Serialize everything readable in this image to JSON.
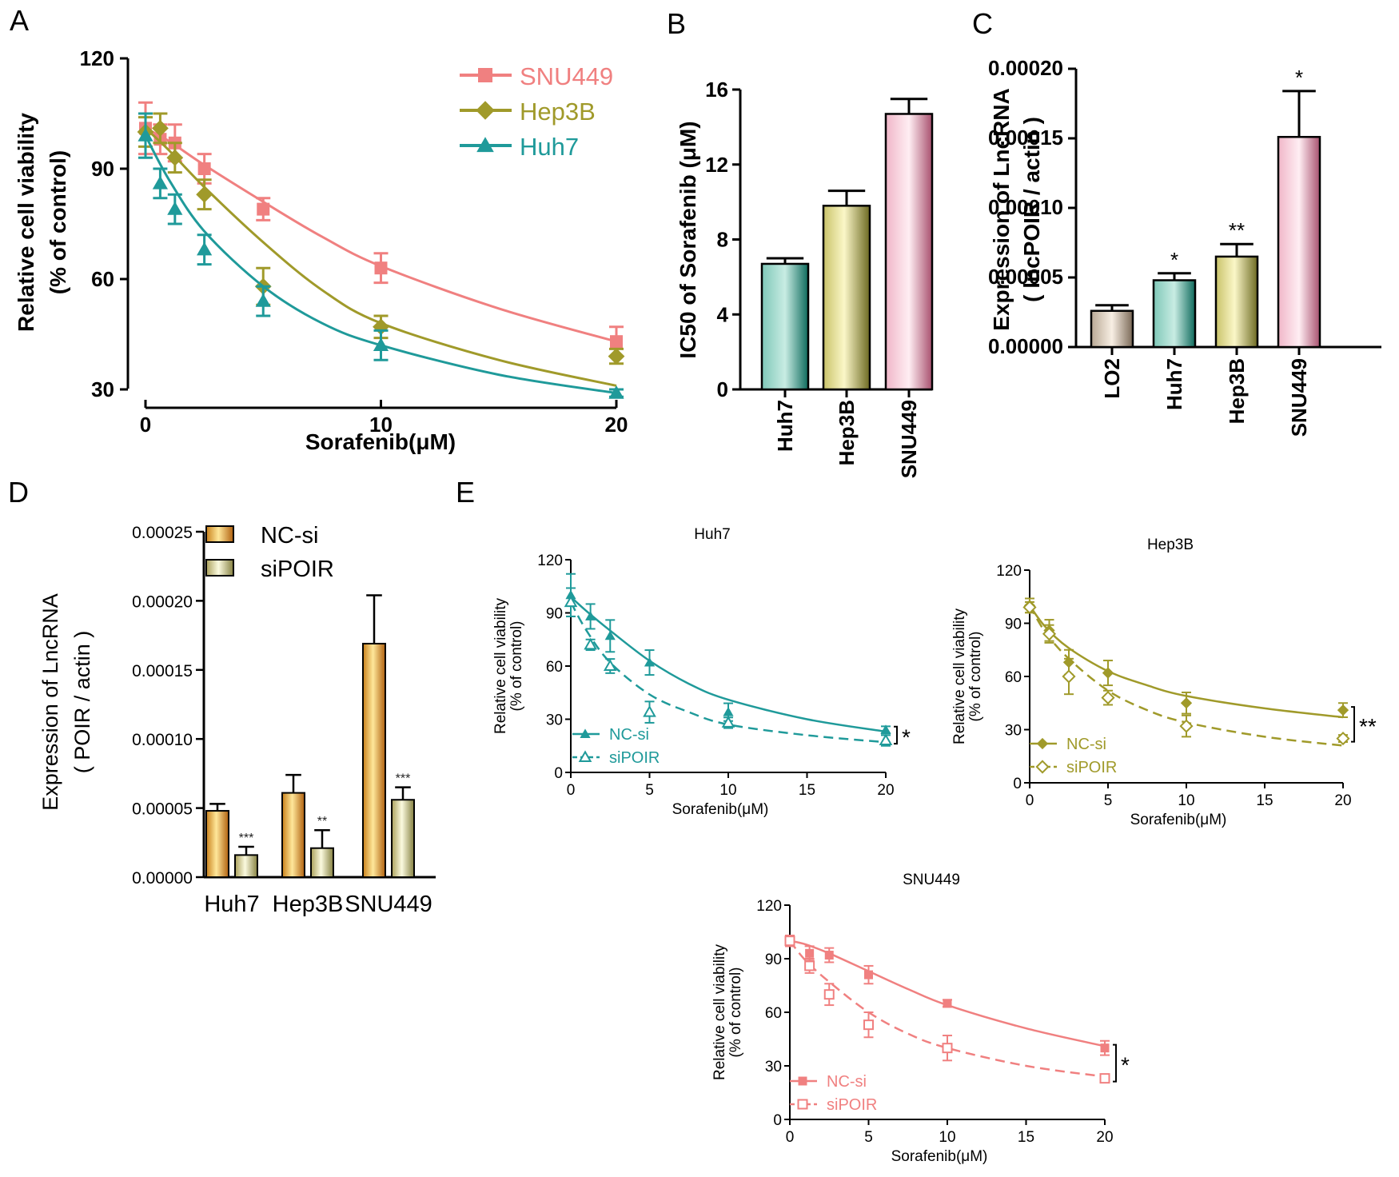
{
  "panel_labels": [
    "A",
    "B",
    "C",
    "D",
    "E"
  ],
  "colors": {
    "SNU449": "#f08080",
    "Hep3B": "#a09a2a",
    "Huh7": "#1f9a9a",
    "axis": "#000000"
  },
  "chart_data": [
    {
      "panel": "A",
      "type": "line",
      "title": "",
      "xlabel": "Sorafenib(μM)",
      "ylabel": "Relative cell viability",
      "ylabel2": "(% of control)",
      "xlim": [
        0,
        20
      ],
      "ylim": [
        25,
        120
      ],
      "xticks": [
        "0",
        "10",
        "20"
      ],
      "yticks": [
        "30",
        "60",
        "90",
        "120"
      ],
      "x": [
        0,
        0.625,
        1.25,
        2.5,
        5,
        10,
        20
      ],
      "legend_position": "top-right",
      "series": [
        {
          "name": "SNU449",
          "marker": "square",
          "values": [
            101,
            98,
            97,
            90,
            79,
            63,
            43
          ],
          "errors": [
            7,
            4,
            5,
            4,
            3,
            4,
            4
          ],
          "fit": [
            [
              0,
              101
            ],
            [
              1,
              97.5
            ],
            [
              2.5,
              91
            ],
            [
              5,
              81
            ],
            [
              7.5,
              71.5
            ],
            [
              10,
              63.5
            ],
            [
              15,
              52
            ],
            [
              20,
              43
            ]
          ]
        },
        {
          "name": "Hep3B",
          "marker": "diamond",
          "values": [
            100,
            101,
            93,
            83,
            58,
            47,
            39
          ],
          "errors": [
            4,
            4,
            4,
            4,
            5,
            3,
            2
          ],
          "fit": [
            [
              0,
              101
            ],
            [
              1,
              95
            ],
            [
              2.5,
              85
            ],
            [
              5,
              70
            ],
            [
              7.5,
              57
            ],
            [
              10,
              48
            ],
            [
              15,
              38
            ],
            [
              20,
              31
            ]
          ]
        },
        {
          "name": "Huh7",
          "marker": "triangle",
          "values": [
            99,
            86,
            79,
            68,
            54,
            42,
            29
          ],
          "errors": [
            6,
            4,
            4,
            4,
            4,
            4,
            1
          ],
          "fit": [
            [
              0,
              99
            ],
            [
              1,
              87
            ],
            [
              2.5,
              73
            ],
            [
              5,
              58
            ],
            [
              7.5,
              48
            ],
            [
              10,
              42
            ],
            [
              15,
              34
            ],
            [
              20,
              29
            ]
          ]
        }
      ]
    },
    {
      "panel": "B",
      "type": "bar",
      "ylabel": "IC50 of Sorafenib (μM)",
      "ylim": [
        0,
        16
      ],
      "yticks": [
        "0",
        "4",
        "8",
        "12",
        "16"
      ],
      "categories": [
        "Huh7",
        "Hep3B",
        "SNU449"
      ],
      "values": [
        6.7,
        9.8,
        14.7
      ],
      "errors": [
        0.3,
        0.8,
        0.8
      ]
    },
    {
      "panel": "C",
      "type": "bar",
      "ylabel": "Expression of  LncRNA",
      "ylabel2": "( lncPOIR / actin )",
      "ylim": [
        0,
        0.0002
      ],
      "yticks": [
        "0.00000",
        "0.00005",
        "0.00010",
        "0.00015",
        "0.00020"
      ],
      "categories": [
        "LO2",
        "Huh7",
        "Hep3B",
        "SNU449"
      ],
      "values": [
        2.6e-05,
        4.8e-05,
        6.5e-05,
        0.000151
      ],
      "errors": [
        4e-06,
        5e-06,
        9e-06,
        3.3e-05
      ],
      "annotations": [
        "",
        "*",
        "**",
        "*"
      ]
    },
    {
      "panel": "D",
      "type": "bar",
      "ylabel": "Expression of  LncRNA",
      "ylabel2": "( POIR / actin )",
      "ylim": [
        0,
        0.00025
      ],
      "yticks": [
        "0.00000",
        "0.00005",
        "0.00010",
        "0.00015",
        "0.00020",
        "0.00025"
      ],
      "categories": [
        "Huh7",
        "Hep3B",
        "SNU449"
      ],
      "legend_position": "top-left",
      "series": [
        {
          "name": "NC-si",
          "values": [
            4.8e-05,
            6.1e-05,
            0.000169
          ],
          "errors": [
            5e-06,
            1.3e-05,
            3.5e-05
          ]
        },
        {
          "name": "siPOIR",
          "values": [
            1.6e-05,
            2.1e-05,
            5.6e-05
          ],
          "errors": [
            6e-06,
            1.3e-05,
            9e-06
          ]
        }
      ],
      "annotations": [
        "***",
        "**",
        "***"
      ]
    },
    {
      "panel": "E1",
      "type": "line",
      "title": "Huh7",
      "xlabel": "Sorafenib(μM)",
      "ylabel": "Relative cell viability",
      "ylabel2": "(% of control)",
      "xlim": [
        0,
        20
      ],
      "ylim": [
        0,
        120
      ],
      "xticks": [
        "0",
        "5",
        "10",
        "15",
        "20"
      ],
      "yticks": [
        "0",
        "30",
        "60",
        "90",
        "120"
      ],
      "x": [
        0,
        1.25,
        2.5,
        5,
        10,
        20
      ],
      "significance": "*",
      "series": [
        {
          "name": "NC-si",
          "values": [
            100,
            88,
            77,
            62,
            34,
            24
          ],
          "errors": [
            12,
            7,
            9,
            7,
            5,
            2
          ],
          "fit": [
            [
              0,
              99
            ],
            [
              1,
              91
            ],
            [
              2.5,
              80
            ],
            [
              5,
              63
            ],
            [
              7.5,
              50
            ],
            [
              10,
              41
            ],
            [
              15,
              30
            ],
            [
              20,
              23
            ]
          ]
        },
        {
          "name": "siPOIR",
          "values": [
            96,
            72,
            60,
            34,
            28,
            18
          ],
          "errors": [
            8,
            3,
            4,
            6,
            3,
            3
          ],
          "fit": [
            [
              0,
              96
            ],
            [
              1,
              80
            ],
            [
              2.5,
              62
            ],
            [
              5,
              44
            ],
            [
              7.5,
              34
            ],
            [
              10,
              27
            ],
            [
              15,
              21
            ],
            [
              20,
              17
            ]
          ]
        }
      ]
    },
    {
      "panel": "E2",
      "type": "line",
      "title": "Hep3B",
      "xlabel": "Sorafenib(μM)",
      "ylabel": "Relative cell viability",
      "ylabel2": "(% of control)",
      "xlim": [
        0,
        20
      ],
      "ylim": [
        0,
        120
      ],
      "xticks": [
        "0",
        "5",
        "10",
        "15",
        "20"
      ],
      "yticks": [
        "0",
        "30",
        "60",
        "90",
        "120"
      ],
      "x": [
        0,
        1.25,
        2.5,
        5,
        10,
        20
      ],
      "significance": "**",
      "series": [
        {
          "name": "NC-si",
          "values": [
            100,
            86,
            68,
            62,
            45,
            41
          ],
          "errors": [
            4,
            6,
            7,
            7,
            6,
            4
          ],
          "fit": [
            [
              0,
              100
            ],
            [
              1,
              88
            ],
            [
              2.5,
              76
            ],
            [
              5,
              63
            ],
            [
              7.5,
              55
            ],
            [
              10,
              49
            ],
            [
              15,
              42
            ],
            [
              20,
              37
            ]
          ]
        },
        {
          "name": "siPOIR",
          "values": [
            99,
            84,
            60,
            48,
            32,
            25
          ],
          "errors": [
            3,
            5,
            10,
            4,
            6,
            2
          ],
          "fit": [
            [
              0,
              100
            ],
            [
              1,
              85
            ],
            [
              2.5,
              70
            ],
            [
              5,
              52
            ],
            [
              7.5,
              41
            ],
            [
              10,
              34
            ],
            [
              15,
              26
            ],
            [
              20,
              21
            ]
          ]
        }
      ]
    },
    {
      "panel": "E3",
      "type": "line",
      "title": "SNU449",
      "xlabel": "Sorafenib(μM)",
      "ylabel": "Relative cell viability",
      "ylabel2": "(% of control)",
      "xlim": [
        0,
        20
      ],
      "ylim": [
        0,
        120
      ],
      "xticks": [
        "0",
        "5",
        "10",
        "15",
        "20"
      ],
      "yticks": [
        "0",
        "30",
        "60",
        "90",
        "120"
      ],
      "x": [
        0,
        1.25,
        2.5,
        5,
        10,
        20
      ],
      "significance": "*",
      "series": [
        {
          "name": "NC-si",
          "values": [
            100,
            93,
            92,
            81,
            65,
            40
          ],
          "errors": [
            3,
            4,
            4,
            5,
            2,
            4
          ],
          "fit": [
            [
              0,
              100
            ],
            [
              1,
              98
            ],
            [
              2.5,
              93
            ],
            [
              5,
              83
            ],
            [
              7.5,
              73
            ],
            [
              10,
              64
            ],
            [
              15,
              51
            ],
            [
              20,
              41
            ]
          ]
        },
        {
          "name": "siPOIR",
          "values": [
            100,
            86,
            70,
            53,
            40,
            23
          ],
          "errors": [
            3,
            4,
            6,
            7,
            7,
            2
          ],
          "fit": [
            [
              0,
              100
            ],
            [
              1,
              89
            ],
            [
              2.5,
              77
            ],
            [
              5,
              60
            ],
            [
              7.5,
              48
            ],
            [
              10,
              40
            ],
            [
              15,
              30
            ],
            [
              20,
              24
            ]
          ]
        }
      ]
    }
  ]
}
